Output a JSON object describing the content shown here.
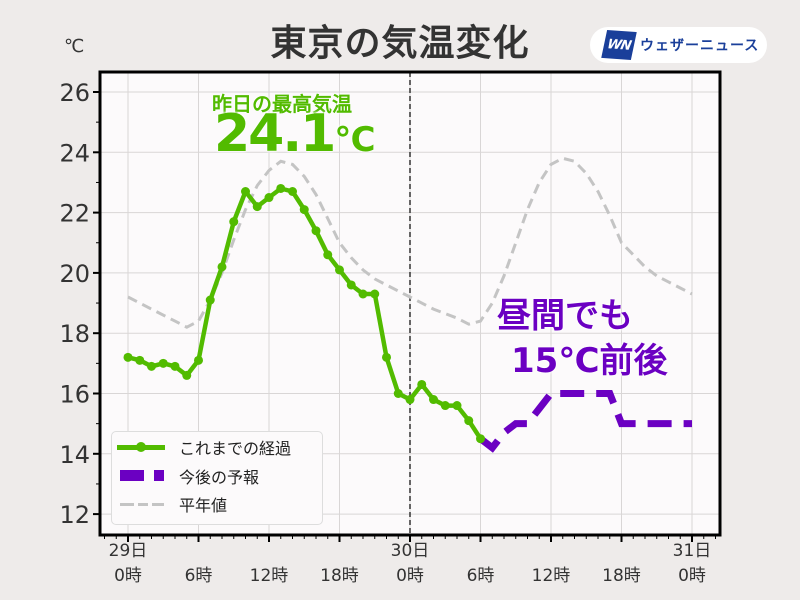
{
  "header": {
    "title": "東京の気温変化",
    "unit": "℃",
    "brand": {
      "mark": "WN",
      "name": "ウェザーニュース"
    }
  },
  "annotations": {
    "yesterday_max_label": "昨日の最高気温",
    "yesterday_max_value": "24.1",
    "yesterday_max_unit": "℃",
    "forecast_line1": "昼間でも",
    "forecast_line2": "15℃前後"
  },
  "legend": {
    "observed": "これまでの経過",
    "forecast": "今後の予報",
    "normal": "平年値"
  },
  "colors": {
    "observed": "#52bb00",
    "forecast": "#6b00c2",
    "normal": "#c4c4c4",
    "grid": "#d9d6d6",
    "plot_bg": "#fcfafb",
    "page_bg": "#eeebea"
  },
  "chart_data": {
    "type": "line",
    "title": "東京の気温変化",
    "xlabel": "",
    "ylabel": "℃",
    "ylim": [
      11.5,
      26.6
    ],
    "xlim_hours": [
      -2.3,
      50.3
    ],
    "grid": true,
    "legend_position": "lower left",
    "yticks": [
      12,
      14,
      16,
      18,
      20,
      22,
      24,
      26
    ],
    "xticks": [
      {
        "hour": 0,
        "label_top": "29日",
        "label_bottom": "0時"
      },
      {
        "hour": 6,
        "label_top": "",
        "label_bottom": "6時"
      },
      {
        "hour": 12,
        "label_top": "",
        "label_bottom": "12時"
      },
      {
        "hour": 18,
        "label_top": "",
        "label_bottom": "18時"
      },
      {
        "hour": 24,
        "label_top": "30日",
        "label_bottom": "0時"
      },
      {
        "hour": 30,
        "label_top": "",
        "label_bottom": "6時"
      },
      {
        "hour": 36,
        "label_top": "",
        "label_bottom": "12時"
      },
      {
        "hour": 42,
        "label_top": "",
        "label_bottom": "18時"
      },
      {
        "hour": 48,
        "label_top": "31日",
        "label_bottom": "0時"
      }
    ],
    "current_time_marker_hour": 24,
    "series": [
      {
        "name": "これまでの経過",
        "style": "solid-with-markers",
        "x": [
          0,
          1,
          2,
          3,
          4,
          5,
          6,
          7,
          8,
          9,
          10,
          11,
          12,
          13,
          14,
          15,
          16,
          17,
          18,
          19,
          20,
          21,
          22,
          23,
          24,
          25,
          26,
          27,
          28,
          29,
          30
        ],
        "values": [
          17.2,
          17.1,
          16.9,
          17.0,
          16.9,
          16.6,
          17.1,
          19.1,
          20.2,
          21.7,
          22.7,
          22.2,
          22.5,
          22.8,
          22.7,
          22.1,
          21.4,
          20.6,
          20.1,
          19.6,
          19.3,
          19.3,
          17.2,
          16.0,
          15.8,
          16.3,
          15.8,
          15.6,
          15.6,
          15.1,
          14.5
        ]
      },
      {
        "name": "今後の予報",
        "style": "dashed-thick",
        "x": [
          30,
          31,
          32,
          33,
          34,
          35,
          36,
          37,
          38,
          39,
          40,
          41,
          42,
          43,
          44,
          45,
          46,
          47,
          48
        ],
        "values": [
          14.5,
          14.2,
          14.7,
          15.0,
          15.0,
          15.5,
          16.0,
          16.0,
          16.0,
          16.0,
          16.0,
          16.0,
          15.0,
          15.0,
          15.0,
          15.0,
          15.0,
          15.0,
          15.0
        ]
      },
      {
        "name": "平年値",
        "style": "dashed-thin",
        "x": [
          0,
          2,
          4,
          5,
          6,
          7,
          8,
          9,
          10,
          11,
          12,
          13,
          14,
          15,
          16,
          17,
          18,
          19,
          20,
          21,
          22,
          23,
          24,
          26,
          28,
          29,
          30,
          31,
          32,
          33,
          34,
          35,
          36,
          37,
          38,
          39,
          40,
          41,
          42,
          43,
          44,
          45,
          46,
          47,
          48
        ],
        "values": [
          19.2,
          18.8,
          18.4,
          18.2,
          18.4,
          19.1,
          20.0,
          21.1,
          22.1,
          22.9,
          23.4,
          23.7,
          23.6,
          23.2,
          22.6,
          21.8,
          21.0,
          20.5,
          20.1,
          19.8,
          19.6,
          19.4,
          19.2,
          18.8,
          18.5,
          18.3,
          18.4,
          19.0,
          19.9,
          21.0,
          22.1,
          23.0,
          23.6,
          23.8,
          23.7,
          23.3,
          22.7,
          21.9,
          21.0,
          20.6,
          20.2,
          19.9,
          19.7,
          19.5,
          19.3
        ]
      }
    ]
  }
}
